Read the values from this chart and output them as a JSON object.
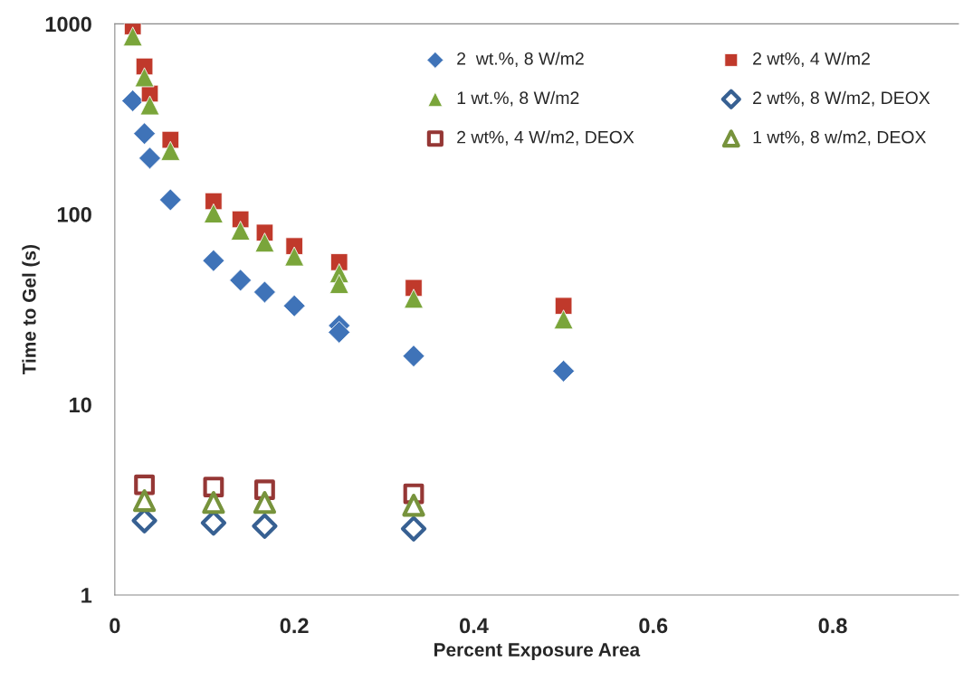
{
  "chart_data": {
    "type": "scatter",
    "xlabel": "Percent Exposure Area",
    "ylabel": "Time to Gel (s)",
    "log": "y",
    "xlim": [
      0,
      0.94
    ],
    "xticks": [
      0,
      0.2,
      0.4,
      0.6,
      0.8
    ],
    "ylim": [
      1,
      1000
    ],
    "yticks": [
      1,
      10,
      100,
      1000
    ],
    "grid": false,
    "legend": "top right",
    "series": [
      {
        "name": "2  wt.%, 8 W/m2",
        "color": "#3f73b8",
        "marker": "diamond",
        "x": [
          0.02,
          0.033,
          0.039,
          0.062,
          0.11,
          0.14,
          0.167,
          0.2,
          0.25,
          0.25,
          0.333,
          0.5
        ],
        "values": [
          394,
          265,
          197,
          119,
          57,
          45,
          39,
          33,
          26,
          24,
          18,
          15
        ]
      },
      {
        "name": "2 wt%, 4 W/m2",
        "color": "#c0392b",
        "marker": "square",
        "x": [
          0.02,
          0.033,
          0.039,
          0.062,
          0.11,
          0.14,
          0.167,
          0.2,
          0.25,
          0.333,
          0.5
        ],
        "values": [
          970,
          597,
          430,
          246,
          117,
          94,
          80,
          68,
          56,
          41,
          33
        ]
      },
      {
        "name": "1 wt.%, 8 W/m2",
        "color": "#7aa53a",
        "marker": "triangle",
        "x": [
          0.02,
          0.033,
          0.039,
          0.062,
          0.11,
          0.14,
          0.167,
          0.2,
          0.25,
          0.25,
          0.333,
          0.5
        ],
        "values": [
          858,
          524,
          373,
          215,
          101,
          82,
          71,
          60,
          49,
          43,
          36,
          28
        ]
      },
      {
        "name": "2 wt%, 8 W/m2, DEOX",
        "color": "#376092",
        "marker": "diamond",
        "x": [
          0.033,
          0.11,
          0.167,
          0.333
        ],
        "values": [
          2.46,
          2.39,
          2.3,
          2.23
        ]
      },
      {
        "name": "2 wt%, 4 W/m2, DEOX",
        "color": "#953735",
        "marker": "square",
        "x": [
          0.033,
          0.11,
          0.167,
          0.333
        ],
        "values": [
          3.79,
          3.69,
          3.57,
          3.4
        ]
      },
      {
        "name": "1 wt%, 8 w/m2, DEOX",
        "color": "#77933c",
        "marker": "triangle",
        "x": [
          0.033,
          0.11,
          0.167,
          0.333
        ],
        "values": [
          3.13,
          3.06,
          3.06,
          2.96
        ]
      }
    ]
  }
}
